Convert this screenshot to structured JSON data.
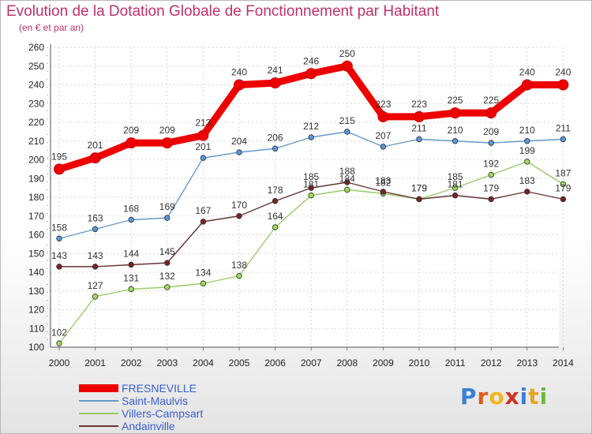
{
  "title": "Evolution de la Dotation Globale de Fonctionnement par Habitant",
  "subtitle": "(en € et par an)",
  "logo": {
    "letters": [
      "P",
      "r",
      "o",
      "x",
      "i",
      "t",
      "i"
    ],
    "colors": [
      "#3b7fd4",
      "#e05a1e",
      "#f4b51c",
      "#d4301e",
      "#3b7fd4",
      "#e6a21a",
      "#6fb83a"
    ]
  },
  "chart_data": {
    "type": "line",
    "x": [
      "2000",
      "2001",
      "2002",
      "2003",
      "2004",
      "2005",
      "2006",
      "2007",
      "2008",
      "2009",
      "2010",
      "2011",
      "2012",
      "2013",
      "2014"
    ],
    "ylim": [
      100,
      260
    ],
    "yticks": [
      100,
      110,
      120,
      130,
      140,
      150,
      160,
      170,
      180,
      190,
      200,
      210,
      220,
      230,
      240,
      250,
      260
    ],
    "grid": true,
    "legend_position": "bottom-left",
    "series": [
      {
        "name": "FRESNEVILLE",
        "color": "#ee0000",
        "values": [
          195,
          201,
          209,
          209,
          213,
          240,
          241,
          246,
          250,
          223,
          223,
          225,
          225,
          240,
          240
        ]
      },
      {
        "name": "Saint-Maulvis",
        "color": "#6699cc",
        "values": [
          158,
          163,
          168,
          169,
          201,
          204,
          206,
          212,
          215,
          207,
          211,
          210,
          209,
          210,
          211
        ]
      },
      {
        "name": "Villers-Campsart",
        "color": "#99cc66",
        "values": [
          102,
          127,
          131,
          132,
          134,
          138,
          164,
          181,
          184,
          182,
          179,
          185,
          192,
          199,
          187
        ]
      },
      {
        "name": "Andainville",
        "color": "#663333",
        "values": [
          143,
          143,
          144,
          145,
          167,
          170,
          178,
          185,
          188,
          183,
          179,
          181,
          179,
          183,
          179
        ]
      }
    ]
  }
}
